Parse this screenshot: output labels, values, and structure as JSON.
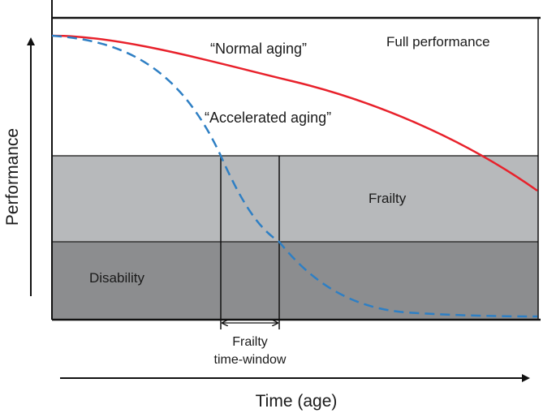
{
  "diagram": {
    "y_axis_label": "Performance",
    "x_axis_label": "Time (age)",
    "zones": {
      "full": "Full performance",
      "frailty": "Frailty",
      "disability": "Disability"
    },
    "curves": {
      "normal": {
        "label": "“Normal aging”",
        "color": "#e8212b",
        "style": "solid"
      },
      "accelerated": {
        "label": "“Accelerated aging”",
        "color": "#2e7fc4",
        "style": "dashed"
      }
    },
    "window": {
      "line1": "Frailty",
      "line2": "time-window"
    },
    "colors": {
      "frailty_zone": "#b7b9bb",
      "disability_zone": "#8c8d8f",
      "frame": "#111111"
    }
  }
}
